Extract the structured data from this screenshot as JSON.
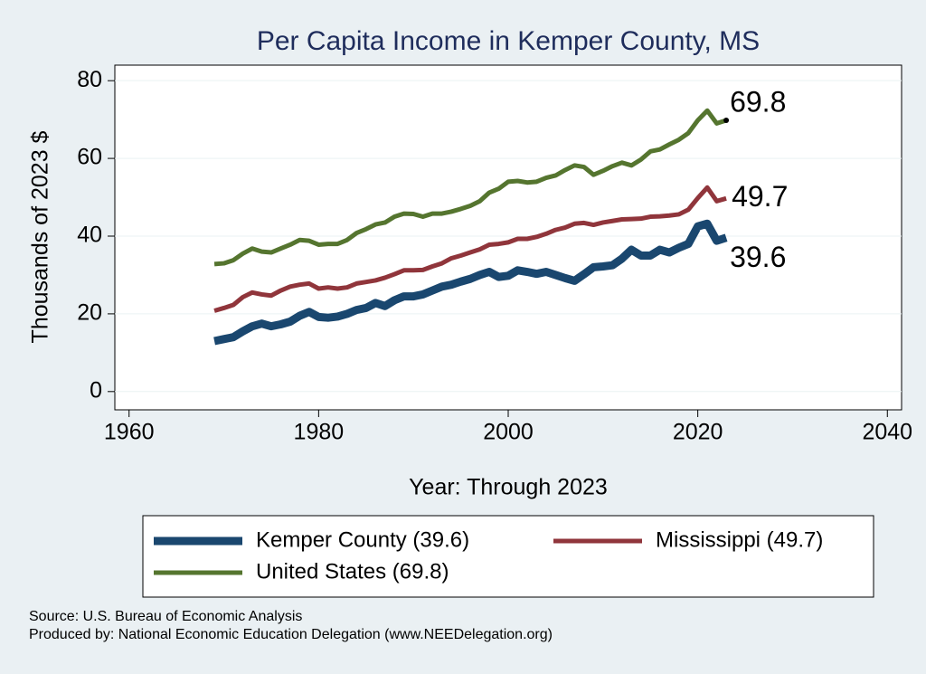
{
  "chart_data": {
    "type": "line",
    "title": "Per Capita Income in Kemper County, MS",
    "x_label": "Year: Through 2023",
    "y_label": "Thousands of 2023 $",
    "x": [
      1969,
      1970,
      1971,
      1972,
      1973,
      1974,
      1975,
      1976,
      1977,
      1978,
      1979,
      1980,
      1981,
      1982,
      1983,
      1984,
      1985,
      1986,
      1987,
      1988,
      1989,
      1990,
      1991,
      1992,
      1993,
      1994,
      1995,
      1996,
      1997,
      1998,
      1999,
      2000,
      2001,
      2002,
      2003,
      2004,
      2005,
      2006,
      2007,
      2008,
      2009,
      2010,
      2011,
      2012,
      2013,
      2014,
      2015,
      2016,
      2017,
      2018,
      2019,
      2020,
      2021,
      2022,
      2023
    ],
    "series": [
      {
        "name": "Kemper County (39.6)",
        "color": "#1a476f",
        "values": [
          13.0,
          13.5,
          14.0,
          15.5,
          16.8,
          17.5,
          16.8,
          17.3,
          18.0,
          19.5,
          20.5,
          19.2,
          19.0,
          19.3,
          20.0,
          21.0,
          21.5,
          22.8,
          22.0,
          23.5,
          24.5,
          24.5,
          25.0,
          26.0,
          27.0,
          27.5,
          28.3,
          29.0,
          30.0,
          30.8,
          29.5,
          29.8,
          31.2,
          30.8,
          30.3,
          30.8,
          30.0,
          29.2,
          28.5,
          30.2,
          32.0,
          32.2,
          32.5,
          34.2,
          36.5,
          35.0,
          35.0,
          36.5,
          35.8,
          37.0,
          38.0,
          42.5,
          43.2,
          38.8,
          39.6
        ]
      },
      {
        "name": "Mississippi (49.7)",
        "color": "#90353b",
        "values": [
          20.8,
          21.5,
          22.3,
          24.3,
          25.5,
          25.0,
          24.7,
          26.0,
          27.0,
          27.5,
          27.8,
          26.5,
          26.8,
          26.5,
          26.8,
          27.8,
          28.2,
          28.6,
          29.3,
          30.2,
          31.2,
          31.2,
          31.3,
          32.2,
          33.0,
          34.3,
          35.0,
          35.8,
          36.6,
          37.8,
          38.0,
          38.4,
          39.3,
          39.3,
          39.8,
          40.6,
          41.6,
          42.2,
          43.2,
          43.4,
          42.9,
          43.5,
          43.9,
          44.3,
          44.4,
          44.5,
          45.0,
          45.1,
          45.3,
          45.6,
          46.8,
          49.8,
          52.5,
          49.0,
          49.7
        ]
      },
      {
        "name": "United States (69.8)",
        "color": "#55752f",
        "values": [
          32.8,
          33.0,
          33.8,
          35.5,
          36.8,
          36.0,
          35.8,
          36.8,
          37.8,
          39.0,
          38.8,
          37.8,
          38.0,
          38.0,
          39.0,
          40.8,
          41.8,
          43.0,
          43.5,
          45.0,
          45.8,
          45.7,
          45.0,
          45.8,
          45.8,
          46.3,
          47.0,
          47.8,
          49.0,
          51.2,
          52.2,
          54.0,
          54.2,
          53.8,
          54.0,
          55.0,
          55.6,
          57.0,
          58.2,
          57.8,
          55.8,
          56.8,
          58.0,
          58.9,
          58.2,
          59.7,
          61.8,
          62.3,
          63.6,
          64.8,
          66.5,
          69.8,
          72.3,
          69.0,
          69.8
        ]
      }
    ],
    "xlim": [
      1958.5,
      2041.5
    ],
    "xticks": [
      1960,
      1980,
      2000,
      2020,
      2040
    ],
    "ylim": [
      -4.7,
      84
    ],
    "yticks": [
      0,
      20,
      40,
      60,
      80
    ],
    "grid": true,
    "source": "Source: U.S. Bureau of Economic Analysis",
    "producer": "Produced by: National Economic Education Delegation (www.NEEDelegation.org)"
  }
}
